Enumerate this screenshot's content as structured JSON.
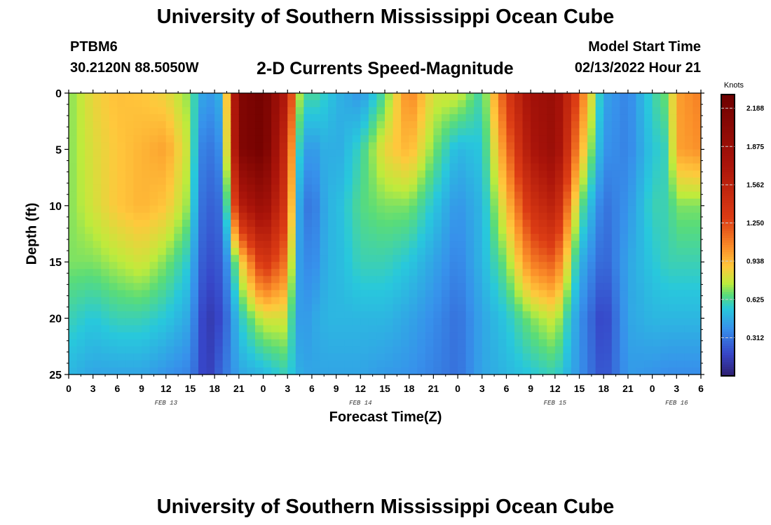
{
  "header": {
    "title": "University of Southern Mississippi Ocean Cube",
    "station_id": "PTBM6",
    "coordinates": "30.2120N  88.5050W",
    "product": "2-D Currents Speed-Magnitude",
    "model_start_label": "Model Start Time",
    "model_start_value": "02/13/2022 Hour 21"
  },
  "footer": {
    "title": "University of Southern Mississippi Ocean Cube"
  },
  "chart_data": {
    "type": "heatmap",
    "xlabel": "Forecast Time(Z)",
    "ylabel": "Depth (ft)",
    "x_ticks": [
      "0",
      "3",
      "6",
      "9",
      "12",
      "15",
      "18",
      "21",
      "0",
      "3",
      "6",
      "9",
      "12",
      "15",
      "18",
      "21",
      "0",
      "3",
      "6",
      "9",
      "12",
      "15",
      "18",
      "21",
      "0",
      "3",
      "6"
    ],
    "day_labels": [
      {
        "label": "FEB 13",
        "tick": 4
      },
      {
        "label": "FEB 14",
        "tick": 12
      },
      {
        "label": "FEB 15",
        "tick": 20
      },
      {
        "label": "FEB 16",
        "tick": 25
      }
    ],
    "y_ticks": [
      0,
      5,
      10,
      15,
      20,
      25
    ],
    "ylim": [
      0,
      25
    ],
    "y_reversed": true,
    "colorbar": {
      "title": "Knots",
      "ticks": [
        "2.188",
        "1.875",
        "1.562",
        "1.250",
        "0.938",
        "0.625",
        "0.312"
      ],
      "range": [
        0.0,
        2.3
      ]
    },
    "hour_range": [
      0,
      78
    ],
    "depth_profiles": {
      "hours": [
        0,
        3,
        6,
        9,
        12,
        15,
        16,
        17,
        19,
        21,
        24,
        27,
        28,
        29,
        30,
        32,
        33,
        36,
        39,
        42,
        45,
        48,
        51,
        54,
        57,
        60,
        63,
        66,
        69,
        72,
        74,
        75,
        78
      ],
      "depths": [
        0,
        5,
        10,
        15,
        20,
        25
      ],
      "speed_knots": [
        [
          0.7,
          0.7,
          0.7,
          0.7,
          0.6,
          0.5
        ],
        [
          0.85,
          0.82,
          0.8,
          0.7,
          0.55,
          0.45
        ],
        [
          0.92,
          0.9,
          0.9,
          0.75,
          0.6,
          0.45
        ],
        [
          0.9,
          0.95,
          0.95,
          0.8,
          0.6,
          0.45
        ],
        [
          0.85,
          1.0,
          0.9,
          0.7,
          0.55,
          0.4
        ],
        [
          0.7,
          0.75,
          0.7,
          0.55,
          0.45,
          0.35
        ],
        [
          0.5,
          0.4,
          0.35,
          0.3,
          0.25,
          0.25
        ],
        [
          0.4,
          0.3,
          0.25,
          0.2,
          0.12,
          0.12
        ],
        [
          0.5,
          0.4,
          0.3,
          0.25,
          0.2,
          0.3
        ],
        [
          2.1,
          2.1,
          1.6,
          0.8,
          0.55,
          0.45
        ],
        [
          2.25,
          2.25,
          1.9,
          1.4,
          0.8,
          0.5
        ],
        [
          1.6,
          1.4,
          1.3,
          1.1,
          0.8,
          0.6
        ],
        [
          0.9,
          0.7,
          0.55,
          0.45,
          0.45,
          0.5
        ],
        [
          0.6,
          0.45,
          0.35,
          0.4,
          0.4,
          0.45
        ],
        [
          0.65,
          0.4,
          0.3,
          0.35,
          0.45,
          0.45
        ],
        [
          0.55,
          0.5,
          0.5,
          0.5,
          0.5,
          0.45
        ],
        [
          0.5,
          0.45,
          0.5,
          0.5,
          0.5,
          0.45
        ],
        [
          0.4,
          0.6,
          0.65,
          0.6,
          0.5,
          0.45
        ],
        [
          0.65,
          0.85,
          0.7,
          0.6,
          0.5,
          0.42
        ],
        [
          1.1,
          0.95,
          0.7,
          0.55,
          0.45,
          0.4
        ],
        [
          0.8,
          0.7,
          0.55,
          0.45,
          0.38,
          0.35
        ],
        [
          0.8,
          0.5,
          0.4,
          0.35,
          0.3,
          0.3
        ],
        [
          0.6,
          0.55,
          0.5,
          0.5,
          0.45,
          0.45
        ],
        [
          1.3,
          1.1,
          0.9,
          0.7,
          0.55,
          0.5
        ],
        [
          1.8,
          1.7,
          1.4,
          1.1,
          0.7,
          0.55
        ],
        [
          1.9,
          1.9,
          1.6,
          1.2,
          0.8,
          0.6
        ],
        [
          1.2,
          1.0,
          0.7,
          0.5,
          0.4,
          0.4
        ],
        [
          0.45,
          0.4,
          0.3,
          0.25,
          0.15,
          0.2
        ],
        [
          0.35,
          0.35,
          0.4,
          0.45,
          0.45,
          0.42
        ],
        [
          0.6,
          0.55,
          0.6,
          0.55,
          0.5,
          0.4
        ],
        [
          0.7,
          0.6,
          0.6,
          0.6,
          0.5,
          0.38
        ],
        [
          1.0,
          1.0,
          0.7,
          0.6,
          0.5,
          0.38
        ],
        [
          1.1,
          1.05,
          0.7,
          0.6,
          0.5,
          0.38
        ]
      ]
    }
  }
}
